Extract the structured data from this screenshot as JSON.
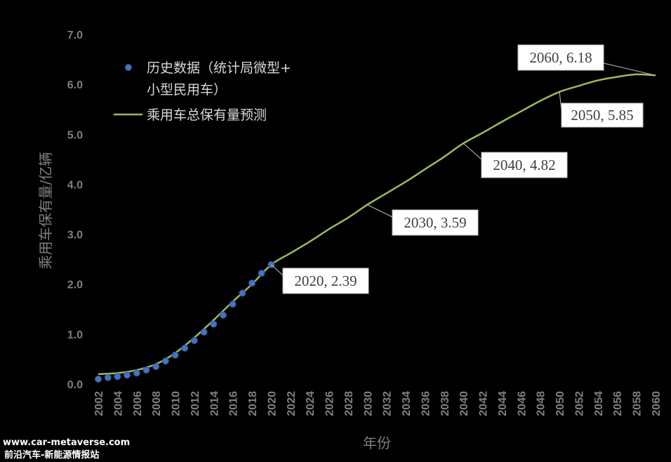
{
  "chart_data": {
    "type": "line",
    "xlabel": "年份",
    "ylabel": "乘用车保有量/亿辆",
    "xlim": [
      2002,
      2060
    ],
    "ylim": [
      0,
      7
    ],
    "y_ticks": [
      "0.0",
      "1.0",
      "2.0",
      "3.0",
      "4.0",
      "5.0",
      "6.0",
      "7.0"
    ],
    "x_ticks": [
      "2002",
      "2004",
      "2006",
      "2008",
      "2010",
      "2012",
      "2014",
      "2016",
      "2018",
      "2020",
      "2022",
      "2024",
      "2026",
      "2028",
      "2030",
      "2032",
      "2034",
      "2036",
      "2038",
      "2040",
      "2042",
      "2044",
      "2046",
      "2048",
      "2050",
      "2052",
      "2054",
      "2056",
      "2058",
      "2060"
    ],
    "legend_position": "top-left",
    "series": [
      {
        "name": "历史数据（统计局微型+小型民用车）",
        "legend_lines": [
          "历史数据（统计局微型+",
          "小型民用车）"
        ],
        "kind": "scatter",
        "color": "#4472c4",
        "x": [
          2002,
          2003,
          2004,
          2005,
          2006,
          2007,
          2008,
          2009,
          2010,
          2011,
          2012,
          2013,
          2014,
          2015,
          2016,
          2017,
          2018,
          2019,
          2020
        ],
        "y": [
          0.1,
          0.13,
          0.15,
          0.18,
          0.22,
          0.28,
          0.35,
          0.46,
          0.58,
          0.72,
          0.87,
          1.04,
          1.2,
          1.38,
          1.6,
          1.82,
          2.02,
          2.22,
          2.39
        ]
      },
      {
        "name": "乘用车总保有量预测",
        "legend_lines": [
          "乘用车总保有量预测"
        ],
        "kind": "line",
        "color": "#9bbb59",
        "x": [
          2002,
          2004,
          2006,
          2008,
          2010,
          2012,
          2014,
          2016,
          2018,
          2020,
          2022,
          2024,
          2026,
          2028,
          2030,
          2032,
          2034,
          2036,
          2038,
          2040,
          2042,
          2044,
          2046,
          2048,
          2050,
          2052,
          2054,
          2056,
          2058,
          2060
        ],
        "y": [
          0.2,
          0.22,
          0.28,
          0.4,
          0.62,
          0.93,
          1.28,
          1.65,
          2.0,
          2.39,
          2.62,
          2.85,
          3.1,
          3.33,
          3.59,
          3.82,
          4.05,
          4.3,
          4.55,
          4.82,
          5.03,
          5.25,
          5.46,
          5.67,
          5.85,
          5.97,
          6.08,
          6.15,
          6.2,
          6.18
        ]
      }
    ],
    "annotations": [
      {
        "x": 2020,
        "y": 2.39,
        "label": "2020, 2.39"
      },
      {
        "x": 2030,
        "y": 3.59,
        "label": "2030, 3.59"
      },
      {
        "x": 2040,
        "y": 4.82,
        "label": "2040, 4.82"
      },
      {
        "x": 2050,
        "y": 5.85,
        "label": "2050, 5.85"
      },
      {
        "x": 2060,
        "y": 6.18,
        "label": "2060, 6.18"
      }
    ]
  },
  "watermark": {
    "line1": "www.car-metaverse.com",
    "line2": "前沿汽车-新能源情报站"
  }
}
